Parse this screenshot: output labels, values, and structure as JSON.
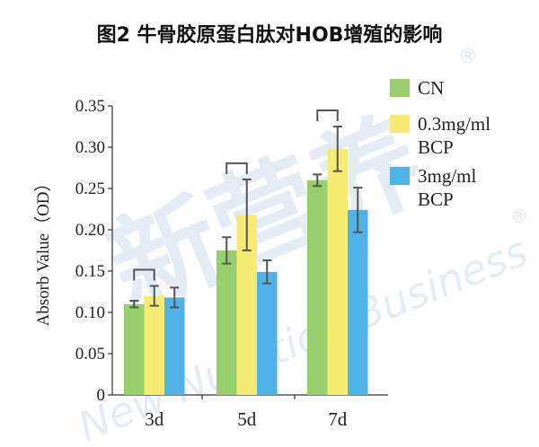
{
  "chart_data": {
    "type": "bar",
    "title": "图2 牛骨胶原蛋白肽对HOB增殖的影响",
    "ylabel": "Absorb Value（OD）",
    "xlabel": "",
    "ylim": [
      0,
      0.35
    ],
    "yticks": [
      "0",
      "0.05",
      "0.10",
      "0.15",
      "0.20",
      "0.25",
      "0.30",
      "0.35"
    ],
    "categories": [
      "3d",
      "5d",
      "7d"
    ],
    "series": [
      {
        "name": "CN",
        "color": "#98cf6c",
        "values": [
          0.11,
          0.175,
          0.26
        ],
        "errors": [
          0.004,
          0.016,
          0.007
        ]
      },
      {
        "name": [
          "0.3mg/ml",
          "BCP"
        ],
        "color": "#f5ec72",
        "values": [
          0.12,
          0.218,
          0.298
        ],
        "errors": [
          0.012,
          0.043,
          0.027
        ]
      },
      {
        "name": [
          "3mg/ml",
          "BCP"
        ],
        "color": "#4fb3e8",
        "values": [
          0.118,
          0.149,
          0.224
        ],
        "errors": [
          0.012,
          0.014,
          0.027
        ]
      }
    ],
    "significance_brackets": [
      "3d",
      "5d",
      "7d"
    ],
    "legend_position": "top-right",
    "grid": false,
    "watermark": {
      "main": "新营养",
      "sub": "New Nutrition Business",
      "mark": "®"
    }
  }
}
